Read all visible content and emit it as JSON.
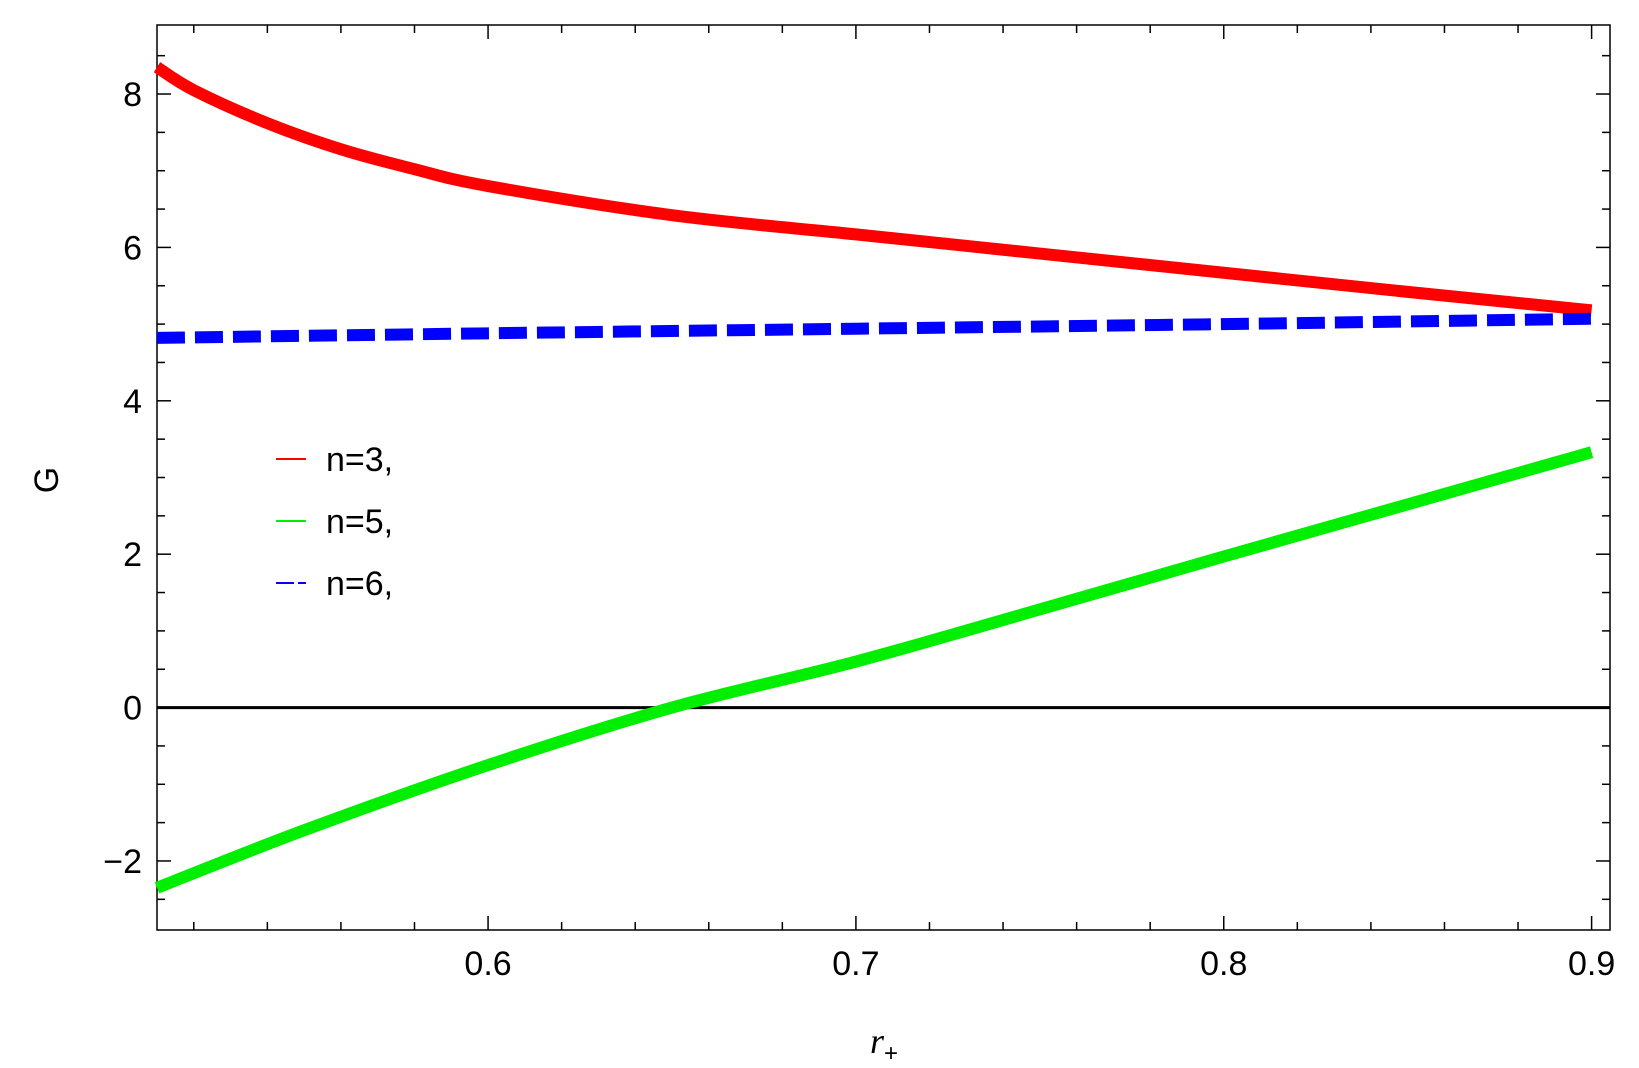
{
  "chart_data": {
    "type": "line",
    "xlabel": "r",
    "xlabel_sub": "+",
    "ylabel": "G",
    "xlim": [
      0.51,
      0.905
    ],
    "ylim": [
      -2.9,
      8.9
    ],
    "xticks": [
      0.6,
      0.7,
      0.8,
      0.9
    ],
    "xtick_labels": [
      "0.6",
      "0.7",
      "0.8",
      "0.9"
    ],
    "yticks": [
      -2,
      0,
      2,
      4,
      6,
      8
    ],
    "ytick_labels": [
      "−2",
      "0",
      "2",
      "4",
      "6",
      "8"
    ],
    "reference_line_y": 0,
    "grid": false,
    "legend_position": "left-middle",
    "series": [
      {
        "name": "n=3,",
        "color": "#ff0000",
        "style": "solid",
        "x": [
          0.51,
          0.52,
          0.54,
          0.56,
          0.58,
          0.6,
          0.65,
          0.7,
          0.75,
          0.8,
          0.85,
          0.9
        ],
        "y": [
          8.35,
          8.05,
          7.62,
          7.28,
          7.02,
          6.8,
          6.42,
          6.17,
          5.92,
          5.67,
          5.42,
          5.18
        ]
      },
      {
        "name": "n=5,",
        "color": "#00ee00",
        "style": "solid",
        "x": [
          0.51,
          0.55,
          0.6,
          0.65,
          0.7,
          0.75,
          0.8,
          0.85,
          0.9
        ],
        "y": [
          -2.35,
          -1.6,
          -0.75,
          0.0,
          0.6,
          1.28,
          1.97,
          2.65,
          3.33
        ]
      },
      {
        "name": "n=6,",
        "color": "#0000ff",
        "style": "dashed",
        "x": [
          0.51,
          0.6,
          0.7,
          0.8,
          0.9
        ],
        "y": [
          4.82,
          4.88,
          4.94,
          5.0,
          5.07
        ]
      }
    ]
  }
}
